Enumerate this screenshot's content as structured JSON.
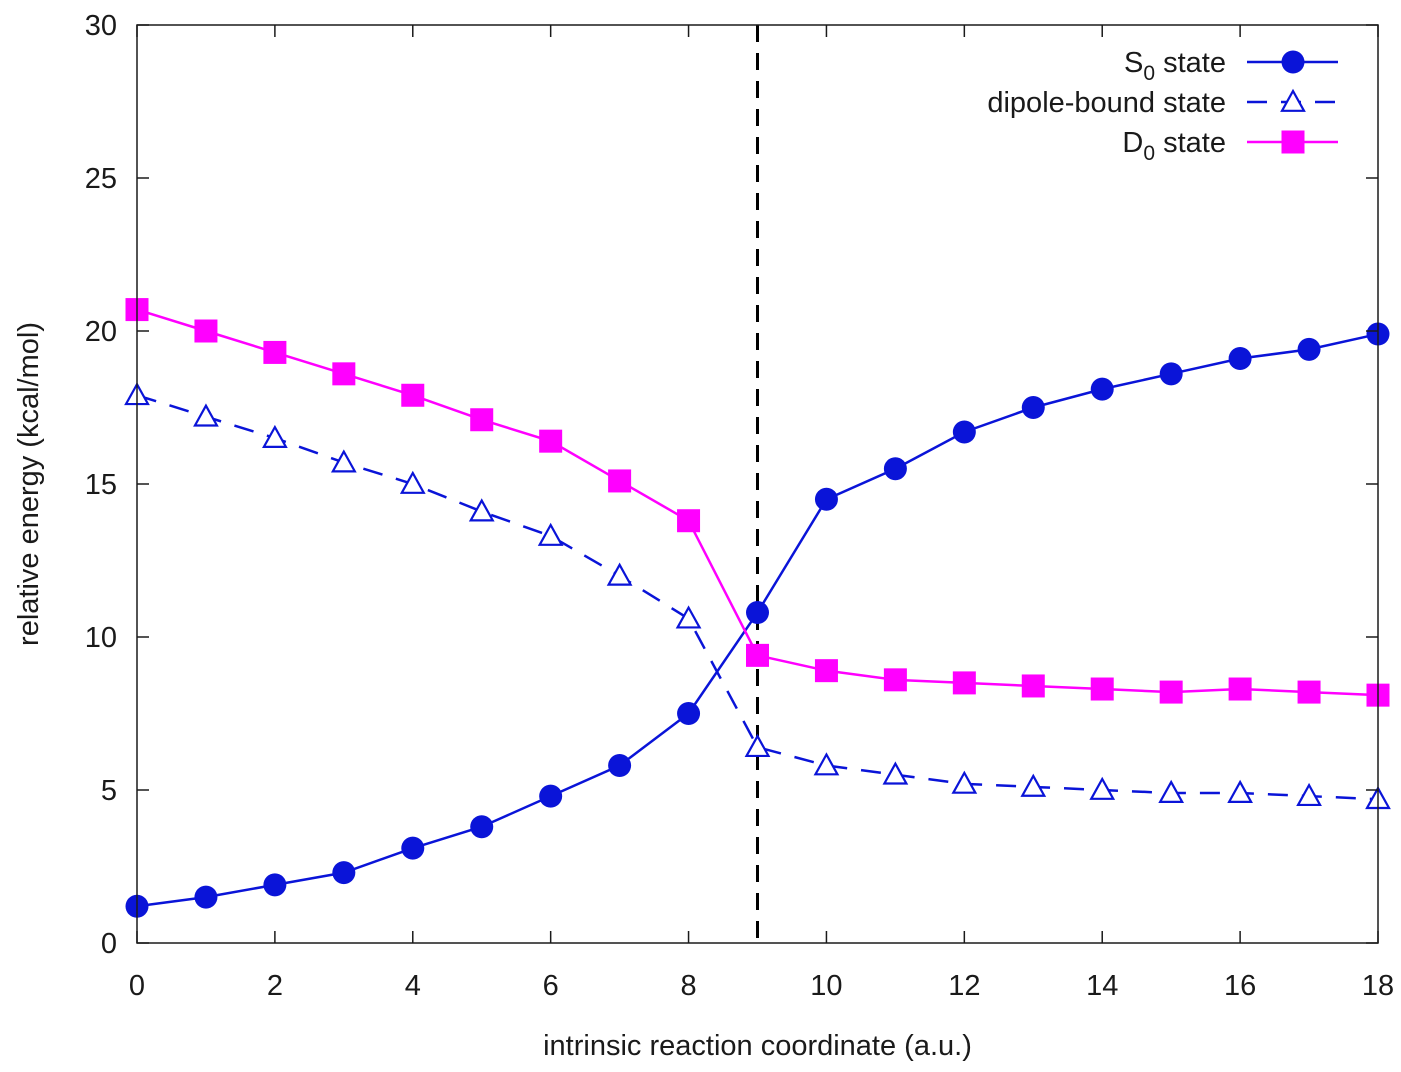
{
  "chart_data": {
    "type": "line",
    "xlabel": "intrinsic reaction coordinate (a.u.)",
    "ylabel": "relative energy (kcal/mol)",
    "xlim": [
      0,
      18
    ],
    "ylim": [
      0,
      30
    ],
    "xticks": [
      0,
      2,
      4,
      6,
      8,
      10,
      12,
      14,
      16,
      18
    ],
    "yticks": [
      0,
      5,
      10,
      15,
      20,
      25,
      30
    ],
    "grid": false,
    "legend_position": "top-right",
    "vline": {
      "x": 9,
      "style": "dashed",
      "color": "#000000"
    },
    "x": [
      0,
      1,
      2,
      3,
      4,
      5,
      6,
      7,
      8,
      9,
      10,
      11,
      12,
      13,
      14,
      15,
      16,
      17,
      18
    ],
    "series": [
      {
        "name": "S",
        "name_sub": "0",
        "name_suffix": " state",
        "color": "#0a14d8",
        "marker": "circle",
        "line": "solid",
        "values": [
          1.2,
          1.5,
          1.9,
          2.3,
          3.1,
          3.8,
          4.8,
          5.8,
          7.5,
          10.8,
          14.5,
          15.5,
          16.7,
          17.5,
          18.1,
          18.6,
          19.1,
          19.4,
          19.9
        ]
      },
      {
        "name": "dipole-bound state",
        "name_sub": "",
        "name_suffix": "",
        "color": "#0a14d8",
        "marker": "triangle-open",
        "line": "dashed",
        "values": [
          17.9,
          17.2,
          16.5,
          15.7,
          15.0,
          14.1,
          13.3,
          12.0,
          10.6,
          6.4,
          5.8,
          5.5,
          5.2,
          5.1,
          5.0,
          4.9,
          4.9,
          4.8,
          4.7
        ]
      },
      {
        "name": "D",
        "name_sub": "0",
        "name_suffix": " state",
        "color": "#ff00ff",
        "marker": "square",
        "line": "solid",
        "values": [
          20.7,
          20.0,
          19.3,
          18.6,
          17.9,
          17.1,
          16.4,
          15.1,
          13.8,
          9.4,
          8.9,
          8.6,
          8.5,
          8.4,
          8.3,
          8.2,
          8.3,
          8.2,
          8.1
        ]
      }
    ]
  }
}
